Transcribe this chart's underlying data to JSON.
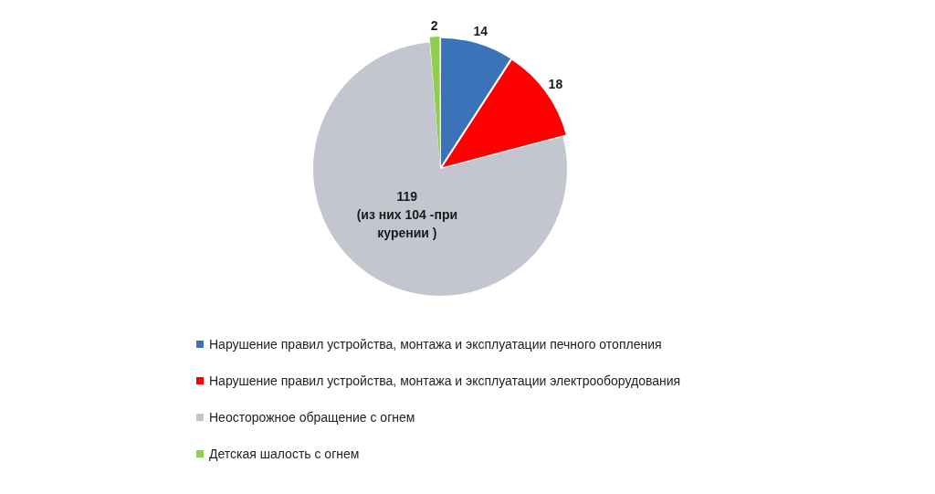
{
  "chart_data": {
    "type": "pie",
    "categories": [
      "Нарушение правил устройства, монтажа и эксплуатации печного отопления",
      "Нарушение правил устройства, монтажа и эксплуатации электрооборудования",
      "Неосторожное обращение с огнем",
      "Детская шалость с огнем"
    ],
    "values": [
      14,
      18,
      119,
      2
    ],
    "colors": [
      "#3b73b9",
      "#ff0000",
      "#c3c6cf",
      "#8fce4f"
    ],
    "value_labels": [
      "14",
      "18",
      "119 (из них 104 -при курении )",
      "2"
    ],
    "legend": "bottom"
  }
}
